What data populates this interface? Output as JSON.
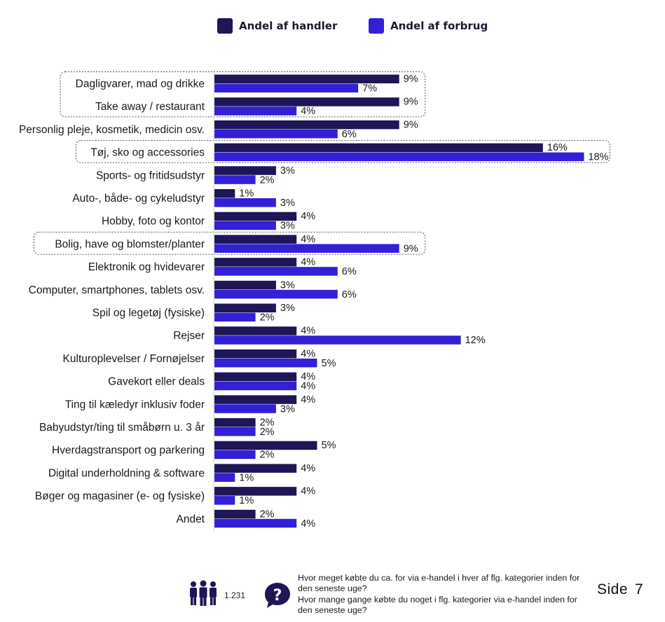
{
  "legend": {
    "handler_label": "Andel af handler",
    "forbrug_label": "Andel af forbrug"
  },
  "colors": {
    "handler": "#1e1656",
    "forbrug": "#3320d6",
    "highlight_border": "#555555"
  },
  "chart_data": {
    "type": "bar",
    "orientation": "horizontal",
    "categories": [
      "Dagligvarer, mad og drikke",
      "Take away / restaurant",
      "Personlig pleje, kosmetik, medicin osv.",
      "Tøj, sko og accessories",
      "Sports- og fritidsudstyr",
      "Auto-, både- og cykeludstyr",
      "Hobby, foto og kontor",
      "Bolig, have og blomster/planter",
      "Elektronik og hvidevarer",
      "Computer, smartphones, tablets osv.",
      "Spil og legetøj (fysiske)",
      "Rejser",
      "Kulturoplevelser / Fornøjelser",
      "Gavekort eller deals",
      "Ting til kæledyr inklusiv foder",
      "Babyudstyr/ting til småbørn u. 3 år",
      "Hverdagstransport og parkering",
      "Digital underholdning & software",
      "Bøger og magasiner (e- og fysiske)",
      "Andet"
    ],
    "series": [
      {
        "name": "Andel af handler",
        "values": [
          9,
          9,
          9,
          16,
          3,
          1,
          4,
          4,
          4,
          3,
          3,
          4,
          4,
          4,
          4,
          2,
          5,
          4,
          4,
          2
        ]
      },
      {
        "name": "Andel af forbrug",
        "values": [
          7,
          4,
          6,
          18,
          2,
          3,
          3,
          9,
          6,
          6,
          2,
          12,
          5,
          4,
          3,
          2,
          2,
          1,
          1,
          4
        ]
      }
    ],
    "value_labels": {
      "handler": [
        "9%",
        "9%",
        "9%",
        "16%",
        "3%",
        "1%",
        "4%",
        "4%",
        "4%",
        "3%",
        "3%",
        "4%",
        "4%",
        "4%",
        "4%",
        "2%",
        "5%",
        "4%",
        "4%",
        "2%"
      ],
      "forbrug": [
        "7%",
        "4%",
        "6%",
        "18%",
        "2%",
        "3%",
        "3%",
        "9%",
        "6%",
        "6%",
        "2%",
        "12%",
        "5%",
        "4%",
        "3%",
        "2%",
        "2%",
        "1%",
        "1%",
        "4%"
      ]
    },
    "highlight_groups": [
      [
        0,
        1
      ],
      [
        3
      ],
      [
        7
      ]
    ],
    "xlim": [
      0,
      18
    ],
    "grid": false,
    "legend_position": "top-center"
  },
  "footer": {
    "respondent_count": "1.231",
    "question_text_1": "Hvor meget købte du ca. for via e-handel i hver af flg. kategorier inden for den seneste uge?",
    "question_text_2": "Hvor mange gange købte du noget i flg. kategorier via e-handel inden for den seneste uge?",
    "page_label": "Side",
    "page_number": "7"
  }
}
